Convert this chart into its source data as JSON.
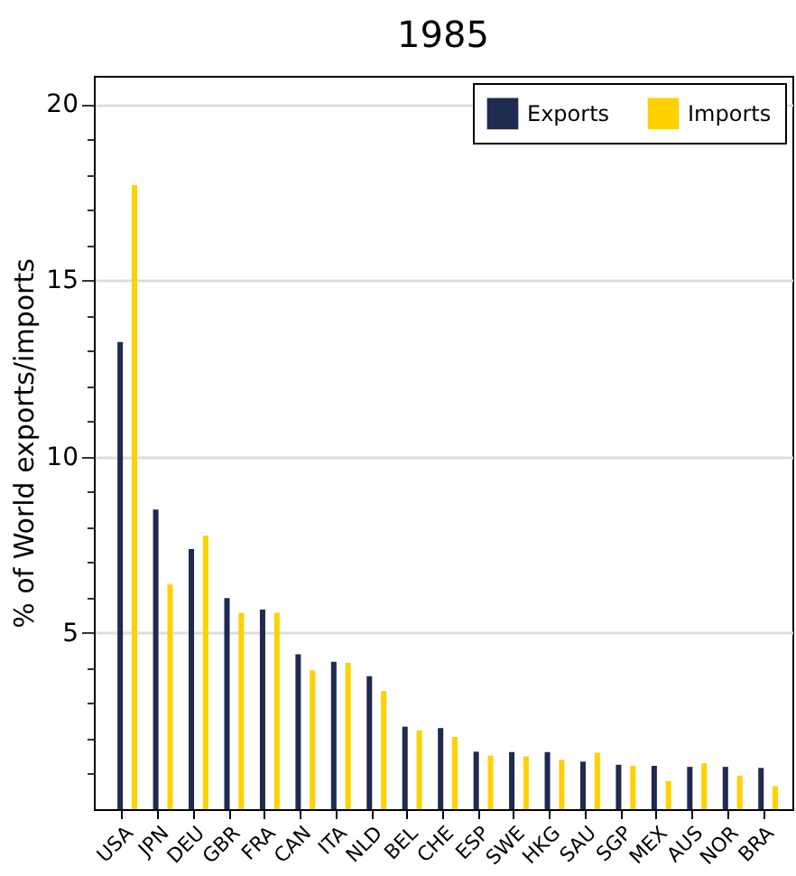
{
  "chart_data": {
    "type": "bar",
    "title": "1985",
    "ylabel": "% of World exports/imports",
    "categories": [
      "USA",
      "JPN",
      "DEU",
      "GBR",
      "FRA",
      "CAN",
      "ITA",
      "NLD",
      "BEL",
      "CHE",
      "ESP",
      "SWE",
      "HKG",
      "SAU",
      "SGP",
      "MEX",
      "AUS",
      "NOR",
      "BRA"
    ],
    "series": [
      {
        "name": "Exports",
        "color": "#1e2a50",
        "values": [
          13.25,
          8.5,
          7.38,
          5.99,
          5.66,
          4.39,
          4.18,
          3.77,
          2.34,
          2.3,
          1.63,
          1.62,
          1.62,
          1.35,
          1.26,
          1.23,
          1.2,
          1.2,
          1.17
        ]
      },
      {
        "name": "Imports",
        "color": "#ffd100",
        "values": [
          17.7,
          6.37,
          7.76,
          5.57,
          5.57,
          3.94,
          4.15,
          3.35,
          2.24,
          2.05,
          1.52,
          1.5,
          1.4,
          1.6,
          1.23,
          0.8,
          1.3,
          0.95,
          0.65
        ]
      }
    ],
    "ylim": [
      0,
      20.8
    ],
    "yticks": [
      {
        "value": 1,
        "label": null
      },
      {
        "value": 2,
        "label": null
      },
      {
        "value": 3,
        "label": null
      },
      {
        "value": 4,
        "label": null
      },
      5,
      {
        "value": 6,
        "label": null
      },
      {
        "value": 7,
        "label": null
      },
      {
        "value": 8,
        "label": null
      },
      {
        "value": 9,
        "label": null
      },
      10,
      {
        "value": 11,
        "label": null
      },
      {
        "value": 12,
        "label": null
      },
      {
        "value": 13,
        "label": null
      },
      {
        "value": 14,
        "label": null
      },
      15,
      {
        "value": 16,
        "label": null
      },
      {
        "value": 17,
        "label": null
      },
      {
        "value": 18,
        "label": null
      },
      {
        "value": 19,
        "label": null
      },
      20
    ],
    "grid": "y",
    "legend": "top right"
  }
}
